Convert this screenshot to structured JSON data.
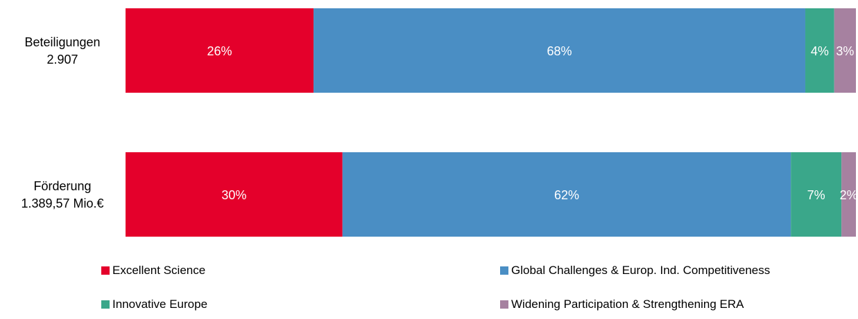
{
  "chart_data": {
    "type": "bar",
    "orientation": "horizontal",
    "stacked": "percent",
    "categories": [
      {
        "label_line1": "Beteiligungen",
        "label_line2": "2.907"
      },
      {
        "label_line1": "Förderung",
        "label_line2": "1.389,57 Mio.€"
      }
    ],
    "series": [
      {
        "name": "Excellent Science",
        "color": "#e4002b",
        "values": [
          26,
          30
        ],
        "labels": [
          "26%",
          "30%"
        ]
      },
      {
        "name": "Global Challenges & Europ. Ind. Competitiveness",
        "color": "#4a8ec4",
        "values": [
          68,
          62
        ],
        "labels": [
          "68%",
          "62%"
        ]
      },
      {
        "name": "Innovative Europe",
        "color": "#3aa78a",
        "values": [
          4,
          7
        ],
        "labels": [
          "4%",
          "7%"
        ]
      },
      {
        "name": "Widening Participation & Strengthening ERA",
        "color": "#a681a0",
        "values": [
          3,
          2
        ],
        "labels": [
          "3%",
          "2%"
        ]
      }
    ],
    "legend_position": "bottom",
    "grid": false
  }
}
